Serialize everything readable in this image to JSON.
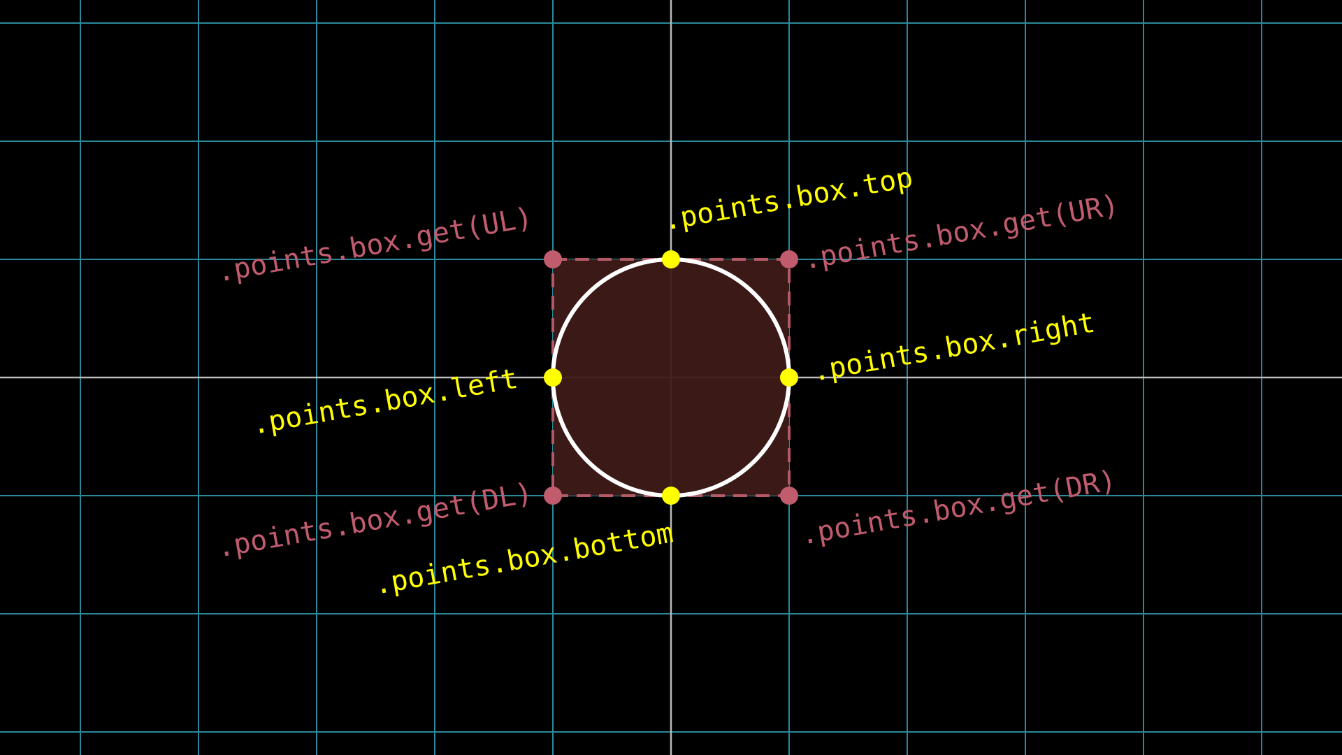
{
  "colors": {
    "background": "#000000",
    "grid": "#2a8a9c",
    "axes": "#bbbbbb",
    "box_fill": "#3d1a18",
    "box_stroke": "#b45a66",
    "circle_stroke": "#ffffff",
    "corner_color": "#c15c6e",
    "edge_color": "#ffff00"
  },
  "corner_labels": {
    "ul": ".points.box.get(UL)",
    "ur": ".points.box.get(UR)",
    "dl": ".points.box.get(DL)",
    "dr": ".points.box.get(DR)"
  },
  "edge_labels": {
    "top": ".points.box.top",
    "right": ".points.box.right",
    "left": ".points.box.left",
    "bottom": ".points.box.bottom"
  }
}
